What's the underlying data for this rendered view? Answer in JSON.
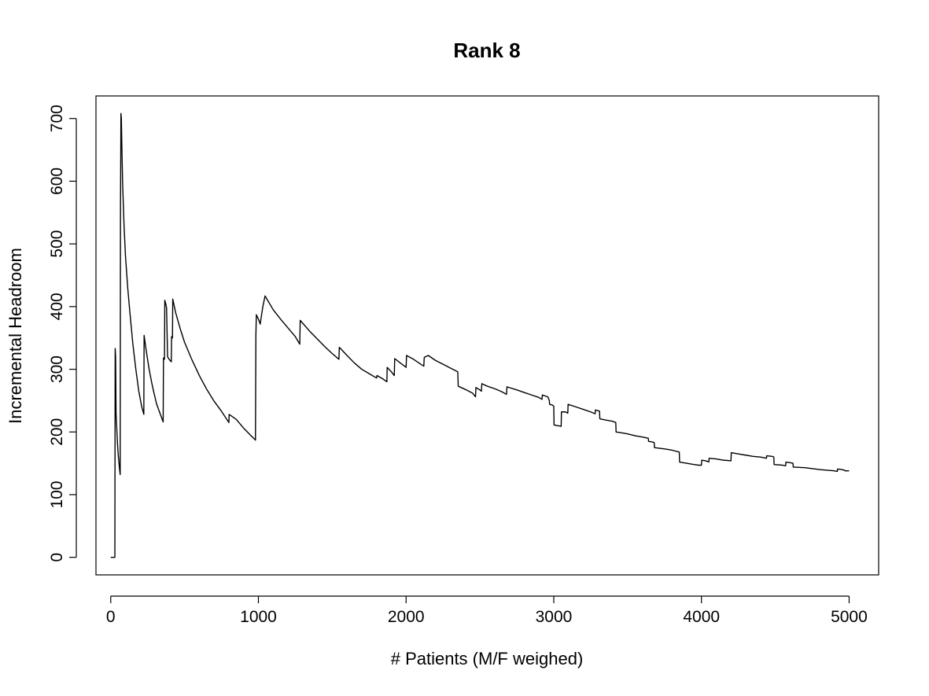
{
  "chart_data": {
    "type": "line",
    "title": "Rank 8",
    "xlabel": "# Patients (M/F weighed)",
    "ylabel": "Incremental Headroom",
    "xlim": [
      -100,
      5200
    ],
    "ylim": [
      -28,
      736
    ],
    "x_ticks": [
      0,
      1000,
      2000,
      3000,
      4000,
      5000
    ],
    "y_ticks": [
      0,
      100,
      200,
      300,
      400,
      500,
      600,
      700
    ],
    "grid": false,
    "legend": "none",
    "series": [
      {
        "color": "#000000",
        "points": [
          [
            0,
            0
          ],
          [
            28,
            0
          ],
          [
            30,
            333
          ],
          [
            33,
            320
          ],
          [
            36,
            230
          ],
          [
            40,
            210
          ],
          [
            46,
            180
          ],
          [
            52,
            160
          ],
          [
            60,
            140
          ],
          [
            64,
            132
          ],
          [
            66,
            560
          ],
          [
            68,
            650
          ],
          [
            69,
            708
          ],
          [
            72,
            700
          ],
          [
            75,
            660
          ],
          [
            80,
            600
          ],
          [
            90,
            530
          ],
          [
            100,
            480
          ],
          [
            115,
            430
          ],
          [
            130,
            390
          ],
          [
            150,
            340
          ],
          [
            170,
            300
          ],
          [
            190,
            265
          ],
          [
            210,
            240
          ],
          [
            224,
            228
          ],
          [
            226,
            354
          ],
          [
            240,
            330
          ],
          [
            260,
            300
          ],
          [
            278,
            278
          ],
          [
            290,
            265
          ],
          [
            310,
            245
          ],
          [
            330,
            232
          ],
          [
            355,
            216
          ],
          [
            357,
            318
          ],
          [
            364,
            316
          ],
          [
            366,
            410
          ],
          [
            372,
            405
          ],
          [
            378,
            398
          ],
          [
            385,
            320
          ],
          [
            395,
            316
          ],
          [
            410,
            312
          ],
          [
            412,
            352
          ],
          [
            418,
            350
          ],
          [
            420,
            412
          ],
          [
            440,
            390
          ],
          [
            470,
            365
          ],
          [
            500,
            343
          ],
          [
            550,
            315
          ],
          [
            600,
            290
          ],
          [
            650,
            268
          ],
          [
            700,
            249
          ],
          [
            750,
            233
          ],
          [
            800,
            215
          ],
          [
            802,
            228
          ],
          [
            850,
            220
          ],
          [
            900,
            206
          ],
          [
            950,
            194
          ],
          [
            980,
            187
          ],
          [
            983,
            355
          ],
          [
            986,
            387
          ],
          [
            1000,
            380
          ],
          [
            1010,
            374
          ],
          [
            1012,
            372
          ],
          [
            1030,
            400
          ],
          [
            1045,
            417
          ],
          [
            1100,
            395
          ],
          [
            1150,
            380
          ],
          [
            1200,
            366
          ],
          [
            1250,
            352
          ],
          [
            1280,
            340
          ],
          [
            1283,
            378
          ],
          [
            1350,
            360
          ],
          [
            1400,
            348
          ],
          [
            1450,
            336
          ],
          [
            1500,
            325
          ],
          [
            1545,
            316
          ],
          [
            1548,
            335
          ],
          [
            1600,
            322
          ],
          [
            1650,
            310
          ],
          [
            1700,
            300
          ],
          [
            1750,
            293
          ],
          [
            1800,
            286
          ],
          [
            1803,
            290
          ],
          [
            1840,
            285
          ],
          [
            1870,
            280
          ],
          [
            1872,
            303
          ],
          [
            1900,
            296
          ],
          [
            1920,
            290
          ],
          [
            1923,
            317
          ],
          [
            1950,
            312
          ],
          [
            1990,
            305
          ],
          [
            2000,
            303
          ],
          [
            2003,
            322
          ],
          [
            2050,
            316
          ],
          [
            2100,
            308
          ],
          [
            2120,
            305
          ],
          [
            2123,
            319
          ],
          [
            2150,
            322
          ],
          [
            2200,
            314
          ],
          [
            2250,
            308
          ],
          [
            2300,
            302
          ],
          [
            2350,
            296
          ],
          [
            2353,
            273
          ],
          [
            2400,
            268
          ],
          [
            2450,
            262
          ],
          [
            2470,
            256
          ],
          [
            2473,
            271
          ],
          [
            2500,
            267
          ],
          [
            2510,
            265
          ],
          [
            2513,
            277
          ],
          [
            2550,
            273
          ],
          [
            2600,
            269
          ],
          [
            2650,
            264
          ],
          [
            2680,
            260
          ],
          [
            2683,
            272
          ],
          [
            2750,
            267
          ],
          [
            2800,
            263
          ],
          [
            2850,
            259
          ],
          [
            2900,
            255
          ],
          [
            2920,
            252
          ],
          [
            2923,
            259
          ],
          [
            2960,
            256
          ],
          [
            2970,
            250
          ],
          [
            2972,
            244
          ],
          [
            2990,
            243
          ],
          [
            3000,
            241
          ],
          [
            3002,
            211
          ],
          [
            3050,
            209
          ],
          [
            3052,
            232
          ],
          [
            3080,
            232
          ],
          [
            3095,
            230
          ],
          [
            3097,
            244
          ],
          [
            3150,
            240
          ],
          [
            3200,
            236
          ],
          [
            3250,
            232
          ],
          [
            3280,
            229
          ],
          [
            3282,
            235
          ],
          [
            3300,
            234
          ],
          [
            3310,
            233
          ],
          [
            3312,
            221
          ],
          [
            3350,
            219
          ],
          [
            3400,
            217
          ],
          [
            3420,
            215
          ],
          [
            3422,
            200
          ],
          [
            3450,
            199
          ],
          [
            3500,
            197
          ],
          [
            3550,
            194
          ],
          [
            3600,
            192
          ],
          [
            3640,
            190
          ],
          [
            3642,
            185
          ],
          [
            3670,
            184
          ],
          [
            3680,
            183
          ],
          [
            3682,
            175
          ],
          [
            3750,
            173
          ],
          [
            3800,
            171
          ],
          [
            3850,
            168
          ],
          [
            3852,
            152
          ],
          [
            3900,
            150
          ],
          [
            3950,
            148
          ],
          [
            3980,
            147
          ],
          [
            4000,
            147
          ],
          [
            4002,
            155
          ],
          [
            4030,
            154
          ],
          [
            4050,
            152
          ],
          [
            4052,
            158
          ],
          [
            4100,
            157
          ],
          [
            4150,
            155
          ],
          [
            4200,
            154
          ],
          [
            4202,
            167
          ],
          [
            4250,
            165
          ],
          [
            4300,
            163
          ],
          [
            4350,
            161
          ],
          [
            4400,
            160
          ],
          [
            4440,
            158
          ],
          [
            4442,
            162
          ],
          [
            4480,
            161
          ],
          [
            4490,
            160
          ],
          [
            4492,
            148
          ],
          [
            4550,
            147
          ],
          [
            4570,
            146
          ],
          [
            4572,
            152
          ],
          [
            4600,
            151
          ],
          [
            4620,
            150
          ],
          [
            4622,
            144
          ],
          [
            4700,
            143
          ],
          [
            4800,
            140
          ],
          [
            4900,
            138
          ],
          [
            4920,
            137
          ],
          [
            4922,
            141
          ],
          [
            4950,
            140
          ],
          [
            4970,
            139
          ],
          [
            4972,
            138
          ],
          [
            5000,
            138
          ]
        ]
      }
    ]
  }
}
